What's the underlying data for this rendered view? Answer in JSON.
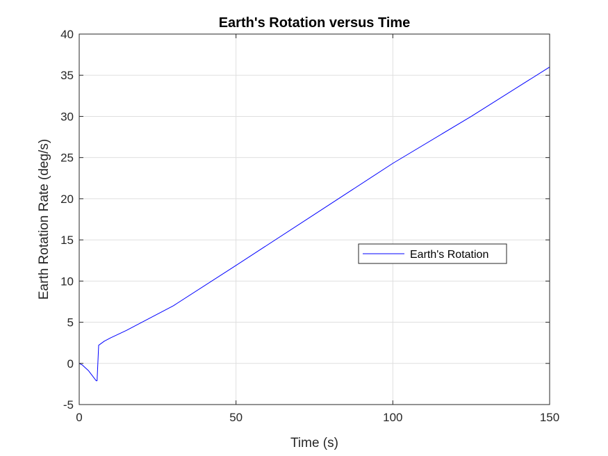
{
  "chart_data": {
    "type": "line",
    "title": "Earth's Rotation versus Time",
    "xlabel": "Time (s)",
    "ylabel": "Earth Rotation Rate (deg/s)",
    "xlim": [
      0,
      150
    ],
    "ylim": [
      -5,
      40
    ],
    "xticks": [
      0,
      50,
      100,
      150
    ],
    "xtick_labels": [
      "0",
      "50",
      "100",
      "150"
    ],
    "yticks": [
      -5,
      0,
      5,
      10,
      15,
      20,
      25,
      30,
      35,
      40
    ],
    "ytick_labels": [
      "-5",
      "0",
      "5",
      "10",
      "15",
      "20",
      "25",
      "30",
      "35",
      "40"
    ],
    "grid": true,
    "legend_position": "center-right",
    "series": [
      {
        "name": "Earth's Rotation",
        "color": "#0000ff",
        "x": [
          0,
          1,
          3,
          5.4,
          5.7,
          6.2,
          8,
          10,
          15,
          20,
          30,
          50,
          75,
          100,
          125,
          150
        ],
        "y": [
          0,
          -0.2,
          -0.9,
          -2.1,
          -2.1,
          2.2,
          2.7,
          3.1,
          4.0,
          5.0,
          7.0,
          11.9,
          18.1,
          24.3,
          30.0,
          36.0
        ]
      }
    ]
  }
}
